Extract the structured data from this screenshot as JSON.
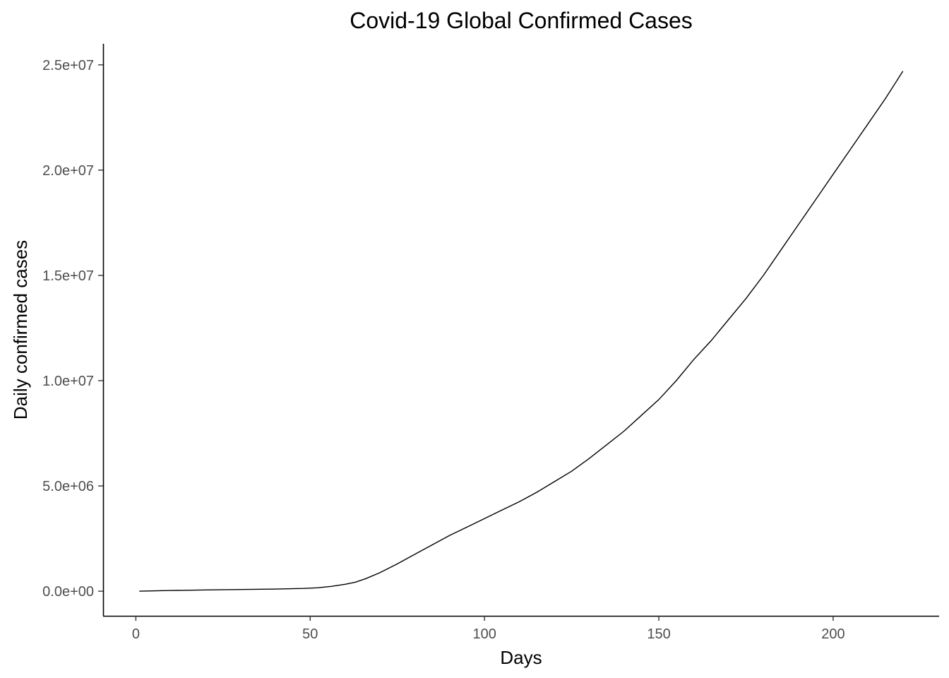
{
  "chart_data": {
    "type": "line",
    "title": "Covid-19 Global Confirmed Cases",
    "xlabel": "Days",
    "ylabel": "Daily confirmed cases",
    "xlim": [
      -9.4,
      230.4
    ],
    "ylim": [
      -1170000,
      26000000
    ],
    "x_ticks": [
      0,
      50,
      100,
      150,
      200
    ],
    "x_tick_labels": [
      "0",
      "50",
      "100",
      "150",
      "200"
    ],
    "y_ticks": [
      0,
      5000000,
      10000000,
      15000000,
      20000000,
      25000000
    ],
    "y_tick_labels": [
      "0.0e+00",
      "5.0e+06",
      "1.0e+07",
      "1.5e+07",
      "2.0e+07",
      "2.5e+07"
    ],
    "grid": false,
    "legend": "none",
    "line_color": "#000000",
    "series": [
      {
        "x": [
          1,
          10,
          20,
          30,
          40,
          48,
          52,
          56,
          60,
          63,
          66,
          70,
          75,
          80,
          85,
          90,
          95,
          100,
          105,
          110,
          115,
          120,
          125,
          130,
          135,
          140,
          145,
          150,
          155,
          160,
          165,
          170,
          175,
          180,
          185,
          190,
          195,
          200,
          205,
          210,
          215,
          220
        ],
        "y": [
          0,
          35000,
          60000,
          80000,
          100000,
          130000,
          160000,
          230000,
          330000,
          430000,
          600000,
          880000,
          1300000,
          1750000,
          2200000,
          2650000,
          3050000,
          3450000,
          3850000,
          4250000,
          4700000,
          5200000,
          5700000,
          6300000,
          6950000,
          7600000,
          8350000,
          9100000,
          10000000,
          11000000,
          11900000,
          12900000,
          13900000,
          15000000,
          16200000,
          17400000,
          18600000,
          19800000,
          21000000,
          22200000,
          23400000,
          24700000
        ]
      }
    ]
  }
}
